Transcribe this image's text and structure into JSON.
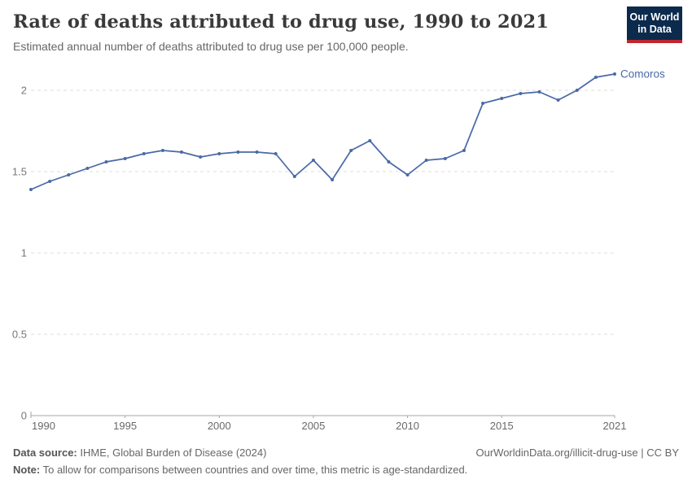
{
  "header": {
    "title": "Rate of deaths attributed to drug use, 1990 to 2021",
    "subtitle": "Estimated annual number of deaths attributed to drug use per 100,000 people.",
    "logo": {
      "line1": "Our World",
      "line2": "in Data",
      "bg_color": "#0b2a4c",
      "accent_color": "#c0272d"
    }
  },
  "chart_data": {
    "type": "line",
    "title": "Rate of deaths attributed to drug use, 1990 to 2021",
    "x": [
      1990,
      1991,
      1992,
      1993,
      1994,
      1995,
      1996,
      1997,
      1998,
      1999,
      2000,
      2001,
      2002,
      2003,
      2004,
      2005,
      2006,
      2007,
      2008,
      2009,
      2010,
      2011,
      2012,
      2013,
      2014,
      2015,
      2016,
      2017,
      2018,
      2019,
      2020,
      2021
    ],
    "series": [
      {
        "name": "Comoros",
        "color": "#4a69a6",
        "values": [
          1.39,
          1.44,
          1.48,
          1.52,
          1.56,
          1.58,
          1.61,
          1.63,
          1.62,
          1.59,
          1.61,
          1.62,
          1.62,
          1.61,
          1.47,
          1.57,
          1.45,
          1.63,
          1.69,
          1.56,
          1.48,
          1.57,
          1.58,
          1.63,
          1.92,
          1.95,
          1.98,
          1.99,
          1.94,
          2.0,
          2.08,
          2.1
        ]
      }
    ],
    "xlabel": "",
    "ylabel": "",
    "ylim": [
      0,
      2.15
    ],
    "yticks": [
      0,
      0.5,
      1,
      1.5,
      2
    ],
    "xticks": [
      1990,
      1995,
      2000,
      2005,
      2010,
      2015,
      2021
    ],
    "grid": "horizontal-dashed",
    "legend_position": "end-of-line"
  },
  "footer": {
    "datasource_label": "Data source:",
    "datasource_value": " IHME, Global Burden of Disease (2024)",
    "link": "OurWorldinData.org/illicit-drug-use | CC BY",
    "note_label": "Note:",
    "note_value": " To allow for comparisons between countries and over time, this metric is age-standardized."
  }
}
